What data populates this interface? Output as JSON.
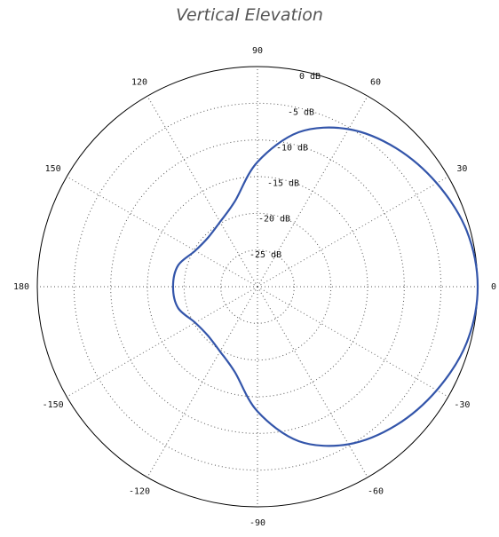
{
  "chart_data": {
    "type": "polar-line",
    "title": "Vertical Elevation",
    "radial_unit": "dB",
    "radial_range": [
      -30,
      0
    ],
    "radial_ticks": [
      0,
      -5,
      -10,
      -15,
      -20,
      -25
    ],
    "radial_tick_labels": [
      "0 dB",
      "-5 dB",
      "-10 dB",
      "-15 dB",
      "-20 dB",
      "-25 dB"
    ],
    "angle_unit": "degrees",
    "angular_ticks": [
      0,
      30,
      60,
      90,
      120,
      150,
      180,
      -150,
      -120,
      -90,
      -60,
      -30
    ],
    "angular_tick_labels": [
      "0",
      "30",
      "60",
      "90",
      "120",
      "150",
      "180",
      "-150",
      "-120",
      "-90",
      "-60",
      "-30"
    ],
    "grid": true,
    "series": [
      {
        "color": "#3355aa",
        "angles": [
          0,
          15,
          30,
          45,
          60,
          75,
          90,
          105,
          120,
          135,
          150,
          165,
          180,
          -165,
          -150,
          -135,
          -120,
          -105,
          -90,
          -75,
          -60,
          -45,
          -30,
          -15
        ],
        "values_db": [
          0,
          -0.5,
          -1.8,
          -3.3,
          -5.2,
          -8.2,
          -13.0,
          -18.0,
          -19.8,
          -20.5,
          -20.2,
          -18.8,
          -18.5,
          -18.8,
          -20.2,
          -20.5,
          -19.8,
          -18.0,
          -13.0,
          -8.2,
          -5.2,
          -3.3,
          -1.8,
          -0.5
        ]
      }
    ]
  },
  "colors": {
    "series": "#3355aa",
    "grid": "#555555",
    "outer_circle": "#000000"
  }
}
